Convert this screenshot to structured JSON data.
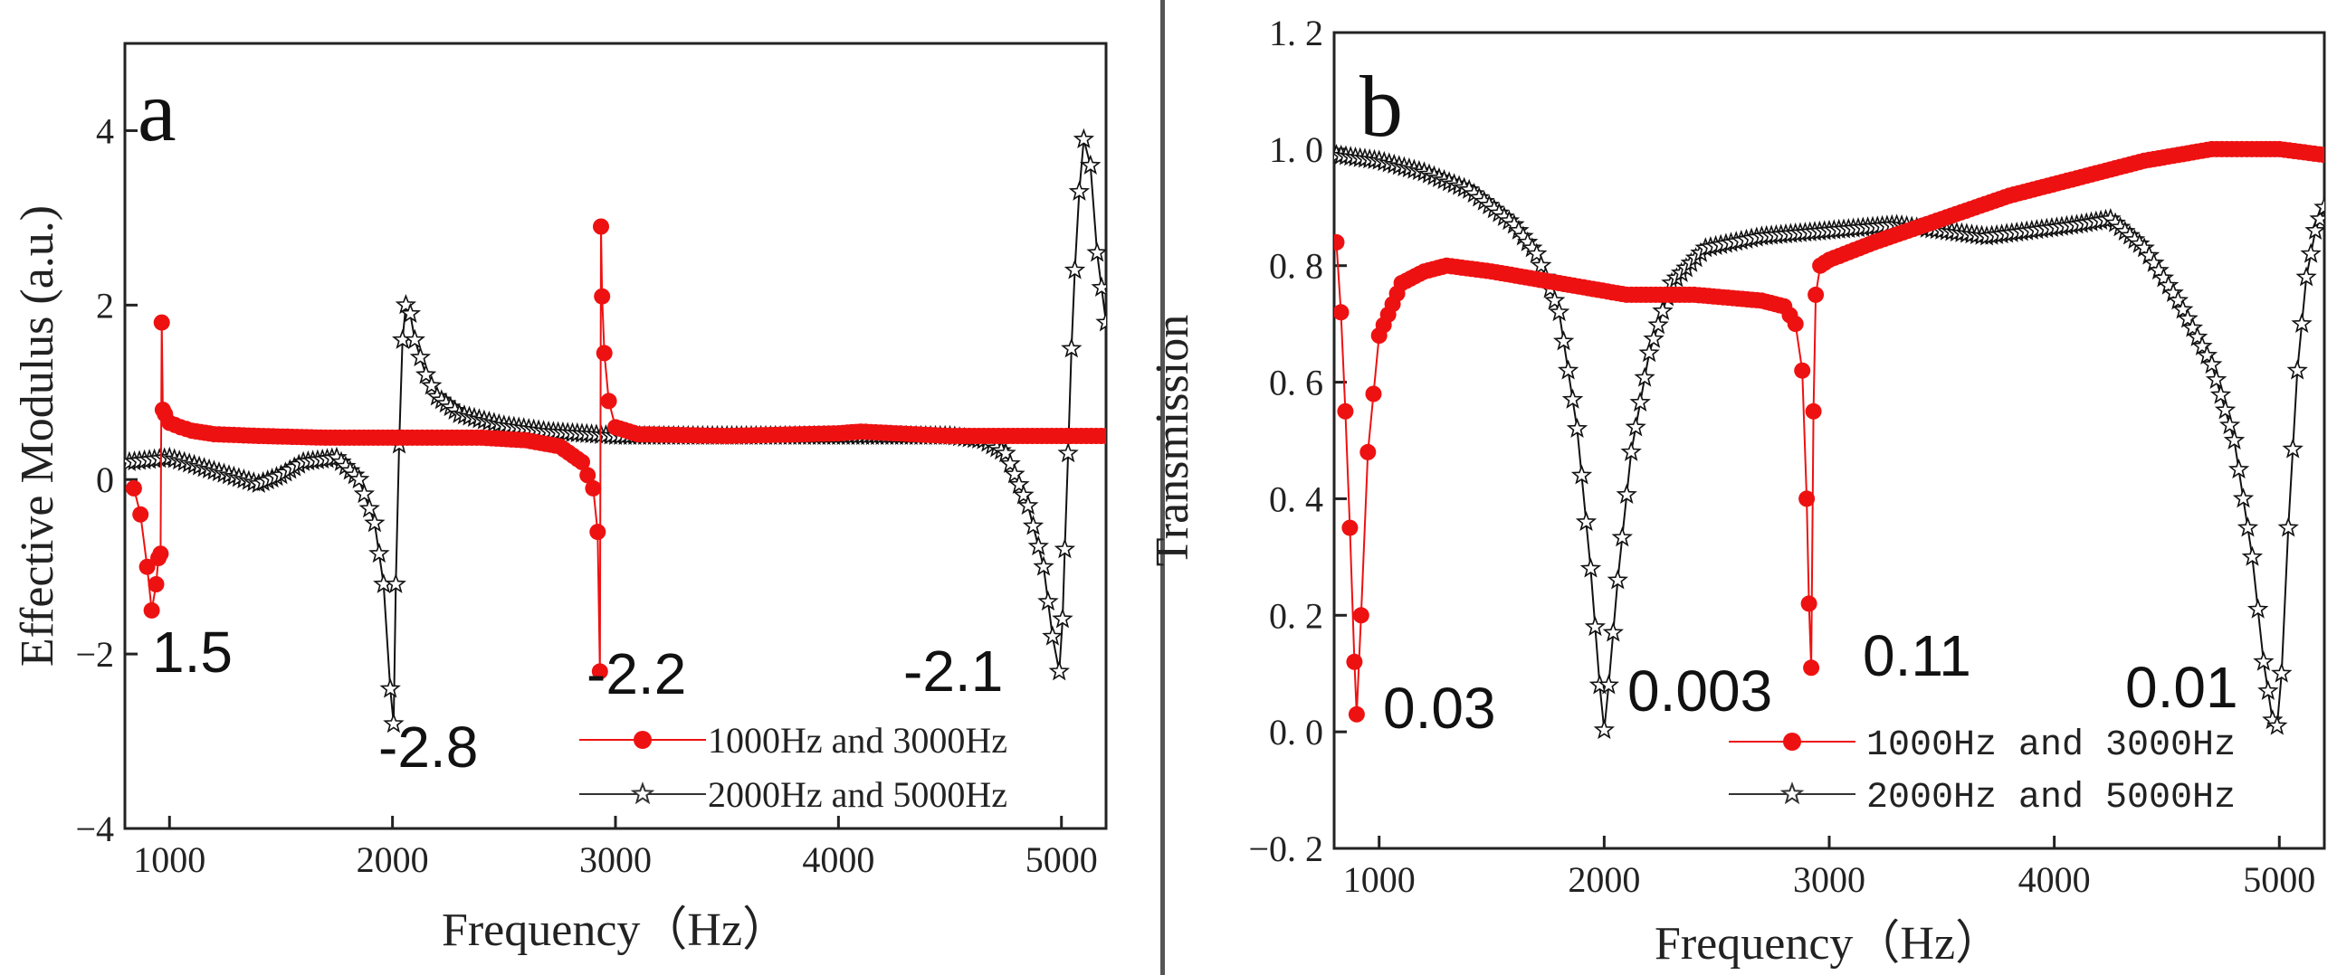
{
  "chart_data": [
    {
      "type": "line",
      "panel_label": "a",
      "xlabel": "Frequency（Hz）",
      "ylabel": "Effective Modulus (a.u.)",
      "xlim": [
        800,
        5200
      ],
      "ylim": [
        -4,
        5
      ],
      "xticks": [
        1000,
        2000,
        3000,
        4000,
        5000
      ],
      "xtick_labels": [
        "1000",
        "2000",
        "3000",
        "4000",
        "5000"
      ],
      "yticks": [
        -4,
        -2,
        0,
        2,
        4
      ],
      "ytick_labels": [
        "−4",
        "−2",
        "0",
        "2",
        "4"
      ],
      "legend_position": "bottom-right",
      "series": [
        {
          "name": "1000Hz and 3000Hz",
          "color": "#ee1111",
          "marker": "circle",
          "x": [
            840,
            870,
            900,
            920,
            940,
            950,
            960,
            965,
            970,
            980,
            1000,
            1050,
            1100,
            1200,
            1400,
            1700,
            2000,
            2400,
            2600,
            2750,
            2850,
            2900,
            2920,
            2930,
            2935,
            2940,
            2950,
            2970,
            3000,
            3100,
            3500,
            4000,
            4100,
            4500,
            5000,
            5200
          ],
          "y": [
            -0.1,
            -0.4,
            -1.0,
            -1.5,
            -1.2,
            -0.9,
            -0.85,
            1.8,
            0.8,
            0.75,
            0.65,
            0.6,
            0.56,
            0.52,
            0.5,
            0.48,
            0.48,
            0.48,
            0.45,
            0.38,
            0.2,
            -0.1,
            -0.6,
            -2.2,
            2.9,
            2.1,
            1.45,
            0.9,
            0.6,
            0.52,
            0.5,
            0.53,
            0.55,
            0.5,
            0.5,
            0.5
          ]
        },
        {
          "name": "2000Hz and 5000Hz",
          "color": "#111111",
          "marker": "star",
          "x": [
            820,
            1000,
            1200,
            1400,
            1500,
            1600,
            1750,
            1850,
            1920,
            1960,
            1990,
            2005,
            2015,
            2030,
            2045,
            2060,
            2080,
            2100,
            2150,
            2200,
            2300,
            2500,
            2700,
            3000,
            3500,
            4000,
            4500,
            4650,
            4750,
            4850,
            4920,
            4960,
            4990,
            5005,
            5015,
            5030,
            5045,
            5060,
            5080,
            5100,
            5130,
            5160,
            5200
          ],
          "y": [
            0.2,
            0.25,
            0.1,
            -0.05,
            0.05,
            0.2,
            0.25,
            0.0,
            -0.5,
            -1.2,
            -2.4,
            -2.8,
            -1.2,
            0.4,
            1.6,
            2.0,
            1.9,
            1.6,
            1.2,
            0.95,
            0.75,
            0.62,
            0.55,
            0.5,
            0.5,
            0.5,
            0.5,
            0.45,
            0.3,
            -0.3,
            -1.0,
            -1.8,
            -2.2,
            -1.6,
            -0.8,
            0.3,
            1.5,
            2.4,
            3.3,
            3.9,
            3.6,
            2.6,
            1.8
          ]
        }
      ],
      "annotations": [
        "1.5",
        "-2.8",
        "-2.2",
        "-2.1"
      ]
    },
    {
      "type": "line",
      "panel_label": "b",
      "xlabel": "Frequency（Hz）",
      "ylabel": "Transmission",
      "xlim": [
        800,
        5200
      ],
      "ylim": [
        -0.2,
        1.2
      ],
      "xticks": [
        1000,
        2000,
        3000,
        4000,
        5000
      ],
      "xtick_labels": [
        "1000",
        "2000",
        "3000",
        "4000",
        "5000"
      ],
      "yticks": [
        -0.2,
        0.0,
        0.2,
        0.4,
        0.6,
        0.8,
        1.0,
        1.2
      ],
      "ytick_labels": [
        "−0. 2",
        "0. 0",
        "0. 2",
        "0. 4",
        "0. 6",
        "0. 8",
        "1. 0",
        "1. 2"
      ],
      "legend_position": "bottom-right",
      "series": [
        {
          "name": "1000Hz and 3000Hz",
          "color": "#ee1111",
          "marker": "circle",
          "x": [
            810,
            830,
            850,
            870,
            890,
            900,
            920,
            950,
            1000,
            1100,
            1200,
            1300,
            1500,
            1800,
            2100,
            2400,
            2700,
            2800,
            2850,
            2880,
            2900,
            2910,
            2920,
            2930,
            2940,
            2960,
            3000,
            3200,
            3500,
            3800,
            4100,
            4400,
            4700,
            4900,
            5000,
            5200
          ],
          "y": [
            0.84,
            0.72,
            0.55,
            0.35,
            0.12,
            0.03,
            0.2,
            0.48,
            0.68,
            0.77,
            0.79,
            0.8,
            0.79,
            0.77,
            0.75,
            0.75,
            0.74,
            0.73,
            0.7,
            0.62,
            0.4,
            0.22,
            0.11,
            0.55,
            0.75,
            0.8,
            0.81,
            0.84,
            0.88,
            0.92,
            0.95,
            0.98,
            1.0,
            1.0,
            1.0,
            0.99
          ]
        },
        {
          "name": "2000Hz and 5000Hz",
          "color": "#111111",
          "marker": "star",
          "x": [
            810,
            1000,
            1200,
            1400,
            1600,
            1700,
            1800,
            1880,
            1940,
            1980,
            2000,
            2020,
            2060,
            2120,
            2200,
            2300,
            2450,
            2700,
            3000,
            3300,
            3500,
            3700,
            3900,
            4100,
            4250,
            4400,
            4550,
            4700,
            4800,
            4880,
            4930,
            4970,
            4990,
            5010,
            5040,
            5080,
            5120,
            5160,
            5200
          ],
          "y": [
            0.99,
            0.98,
            0.96,
            0.93,
            0.87,
            0.82,
            0.72,
            0.52,
            0.28,
            0.08,
            0.003,
            0.08,
            0.26,
            0.48,
            0.65,
            0.77,
            0.83,
            0.85,
            0.86,
            0.87,
            0.86,
            0.85,
            0.86,
            0.87,
            0.88,
            0.83,
            0.74,
            0.63,
            0.5,
            0.3,
            0.12,
            0.02,
            0.01,
            0.1,
            0.35,
            0.62,
            0.78,
            0.86,
            0.9
          ]
        }
      ],
      "annotations": [
        "0.03",
        "0.003",
        "0.11",
        "0.01"
      ]
    }
  ]
}
